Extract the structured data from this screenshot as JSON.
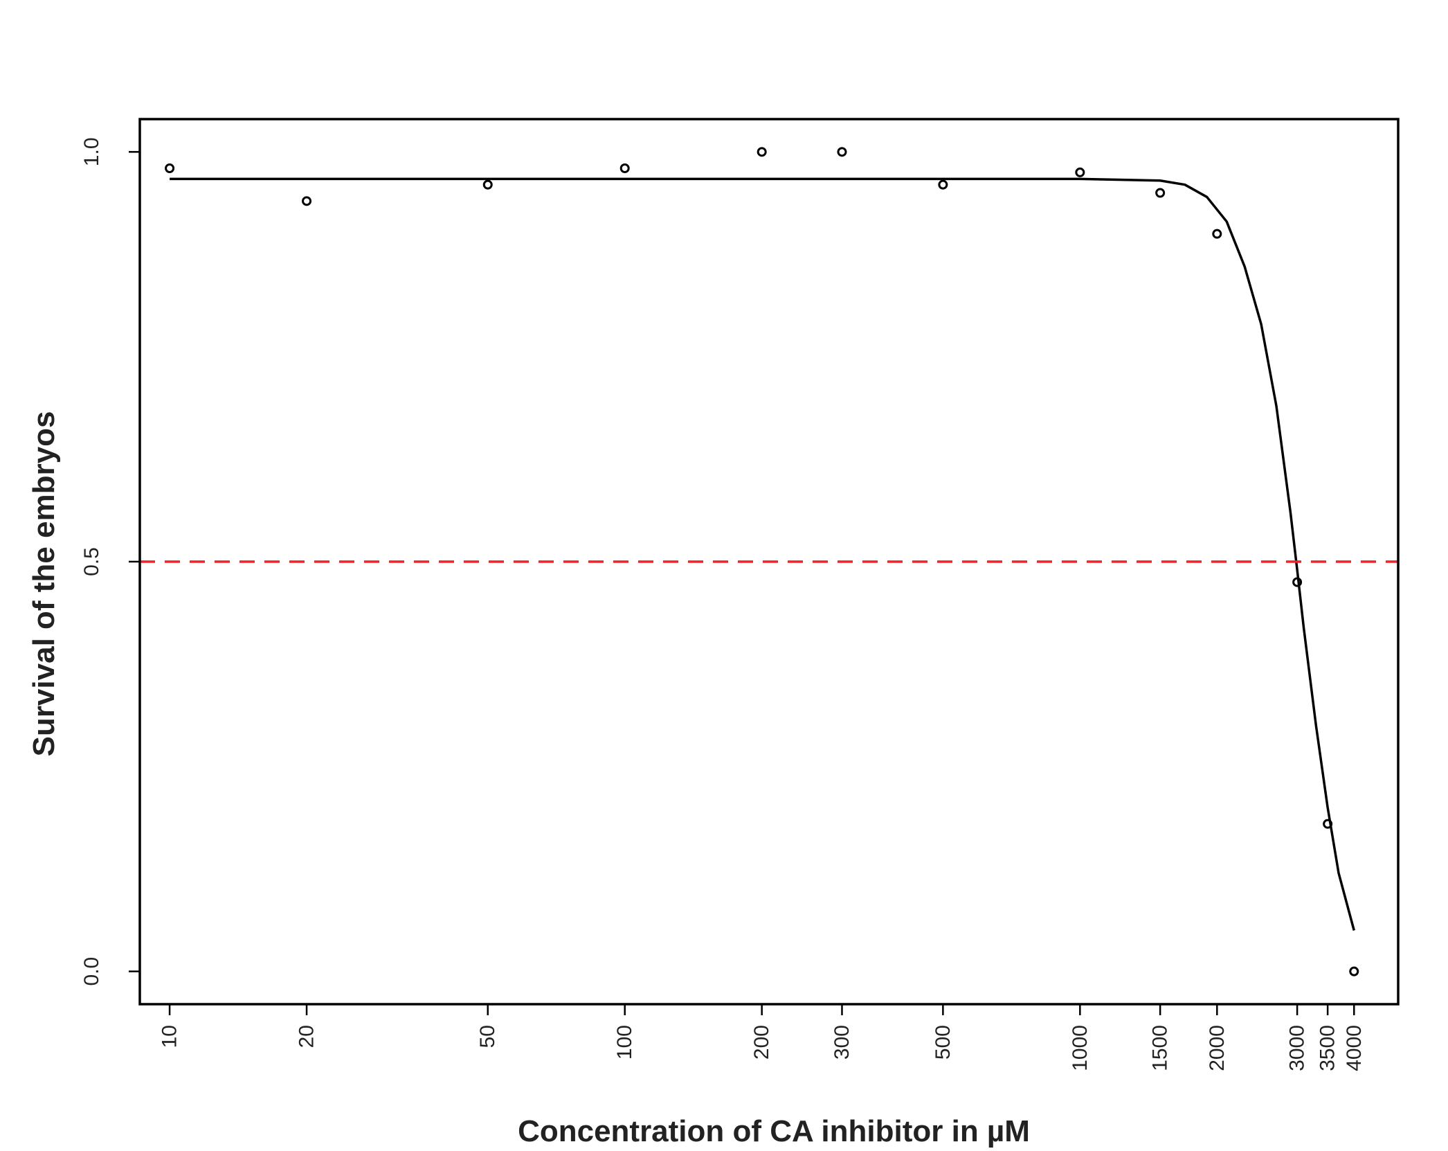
{
  "chart_data": {
    "type": "scatter",
    "title": "",
    "xlabel": "Concentration of CA inhibitor in µM",
    "ylabel": "Survival of the embryos",
    "x_scale": "log",
    "xlim": [
      8.6,
      5000
    ],
    "ylim": [
      -0.04,
      1.04
    ],
    "x_ticks": [
      10,
      20,
      50,
      100,
      200,
      300,
      500,
      1000,
      1500,
      2000,
      3000,
      3500,
      4000
    ],
    "x_tick_labels": [
      "10",
      "20",
      "50",
      "100",
      "200",
      "300",
      "500",
      "1000",
      "1500",
      "2000",
      "3000",
      "3500",
      "4000"
    ],
    "y_ticks": [
      0,
      0.5,
      1
    ],
    "y_tick_labels": [
      "0.0",
      "0.5",
      "1.0"
    ],
    "grid": false,
    "legend": "none",
    "series": [
      {
        "type": "scatter",
        "color": "#000000",
        "points": [
          {
            "x": 10,
            "y": 0.98
          },
          {
            "x": 20,
            "y": 0.94
          },
          {
            "x": 50,
            "y": 0.96
          },
          {
            "x": 100,
            "y": 0.98
          },
          {
            "x": 200,
            "y": 1.0
          },
          {
            "x": 300,
            "y": 1.0
          },
          {
            "x": 500,
            "y": 0.96
          },
          {
            "x": 1000,
            "y": 0.975
          },
          {
            "x": 1500,
            "y": 0.95
          },
          {
            "x": 2000,
            "y": 0.9
          },
          {
            "x": 3000,
            "y": 0.475
          },
          {
            "x": 3500,
            "y": 0.18
          },
          {
            "x": 4000,
            "y": 0.0
          }
        ]
      },
      {
        "type": "line",
        "color": "#000000",
        "x": [
          10,
          100,
          1000,
          1500,
          1700,
          1900,
          2100,
          2300,
          2500,
          2700,
          2900,
          3000,
          3100,
          3300,
          3500,
          3700,
          4000
        ],
        "y": [
          0.967,
          0.967,
          0.967,
          0.965,
          0.96,
          0.945,
          0.915,
          0.86,
          0.79,
          0.69,
          0.56,
          0.49,
          0.42,
          0.3,
          0.2,
          0.12,
          0.05
        ]
      },
      {
        "type": "hline",
        "color": "#e8262b",
        "style": "dashed",
        "y": 0.5
      }
    ]
  }
}
